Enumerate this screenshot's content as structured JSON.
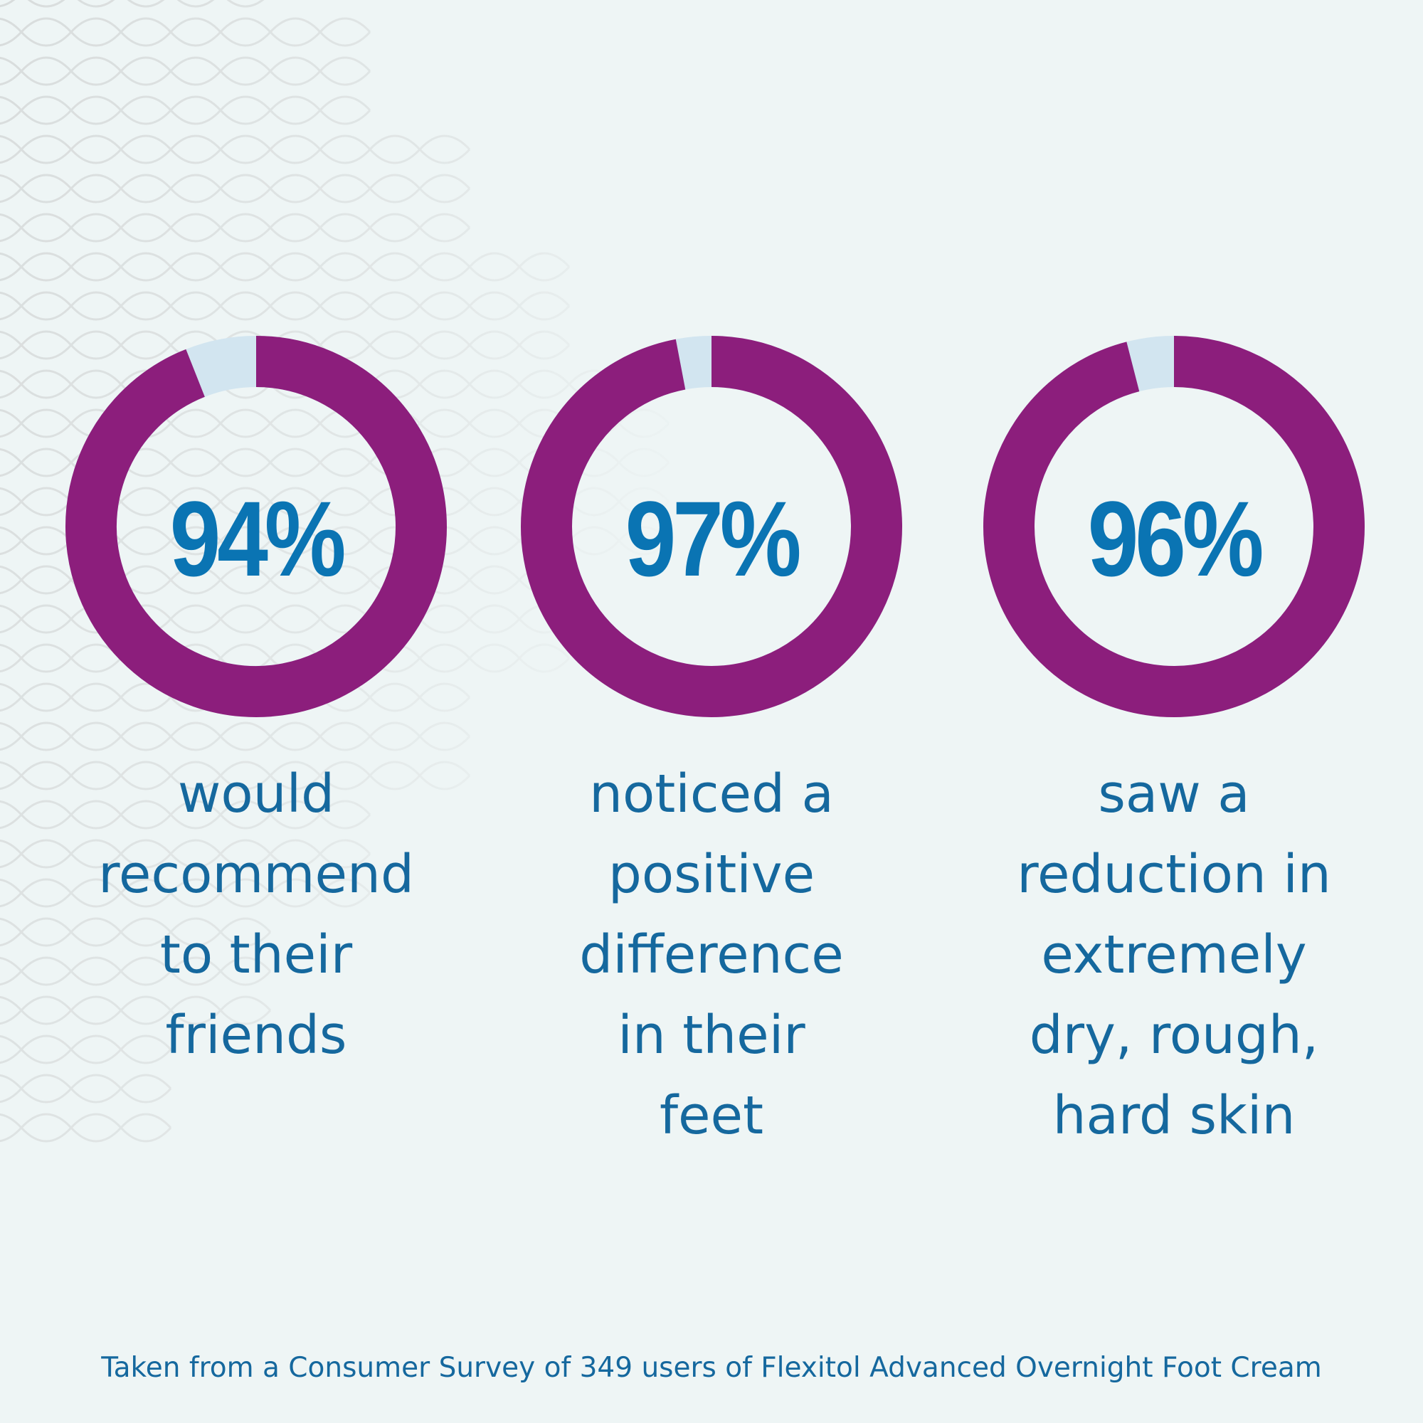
{
  "colors": {
    "background": "#eef5f5",
    "arc": "#8c1e7c",
    "track": "#d2e5f0",
    "percent_text": "#0a74b3",
    "caption_text": "#15689e",
    "pattern": "#d8dcdc"
  },
  "chart_data": [
    {
      "type": "pie",
      "value": 94,
      "max": 100,
      "label": "94%",
      "caption": [
        "would",
        "recommend",
        "to their",
        "friends"
      ]
    },
    {
      "type": "pie",
      "value": 97,
      "max": 100,
      "label": "97%",
      "caption": [
        "noticed a",
        "positive",
        "difference",
        "in their",
        "feet"
      ]
    },
    {
      "type": "pie",
      "value": 96,
      "max": 100,
      "label": "96%",
      "caption": [
        "saw a",
        "reduction in",
        "extremely",
        "dry, rough,",
        "hard skin"
      ]
    }
  ],
  "footnote": "Taken from a Consumer Survey of 349 users of Flexitol Advanced Overnight Foot Cream"
}
